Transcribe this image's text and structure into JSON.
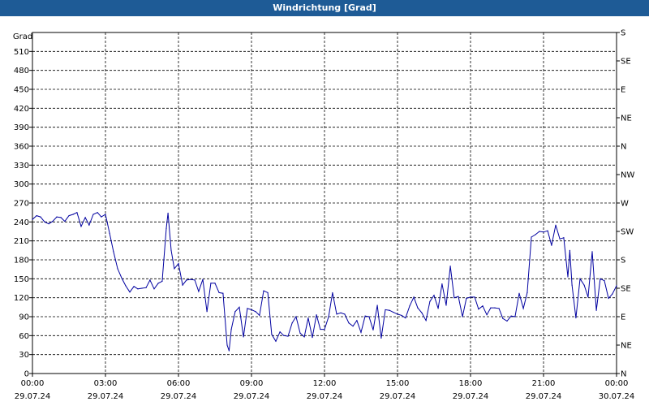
{
  "title": "Windrichtung [Grad]",
  "chart_data": {
    "type": "line",
    "title": "Windrichtung [Grad]",
    "ylabel": "Grad",
    "ylim": [
      0,
      540
    ],
    "y_ticks": [
      0,
      30,
      60,
      90,
      120,
      150,
      180,
      210,
      240,
      270,
      300,
      330,
      360,
      390,
      420,
      450,
      480,
      510
    ],
    "right_ticks": [
      {
        "value": 0,
        "label": "N"
      },
      {
        "value": 45,
        "label": "NE"
      },
      {
        "value": 90,
        "label": "E"
      },
      {
        "value": 135,
        "label": "SE"
      },
      {
        "value": 180,
        "label": "S"
      },
      {
        "value": 225,
        "label": "SW"
      },
      {
        "value": 270,
        "label": "W"
      },
      {
        "value": 315,
        "label": "NW"
      },
      {
        "value": 360,
        "label": "N"
      },
      {
        "value": 405,
        "label": "NE"
      },
      {
        "value": 450,
        "label": "E"
      },
      {
        "value": 495,
        "label": "SE"
      },
      {
        "value": 540,
        "label": "S"
      }
    ],
    "xlim": [
      0,
      24
    ],
    "x_ticks": [
      {
        "hour": 0,
        "time": "00:00",
        "date": "29.07.24"
      },
      {
        "hour": 3,
        "time": "03:00",
        "date": "29.07.24"
      },
      {
        "hour": 6,
        "time": "06:00",
        "date": "29.07.24"
      },
      {
        "hour": 9,
        "time": "09:00",
        "date": "29.07.24"
      },
      {
        "hour": 12,
        "time": "12:00",
        "date": "29.07.24"
      },
      {
        "hour": 15,
        "time": "15:00",
        "date": "29.07.24"
      },
      {
        "hour": 18,
        "time": "18:00",
        "date": "29.07.24"
      },
      {
        "hour": 21,
        "time": "21:00",
        "date": "29.07.24"
      },
      {
        "hour": 24,
        "time": "00:00",
        "date": "30.07.24"
      }
    ],
    "grid": true,
    "series": [
      {
        "color": "#0000a0",
        "points": [
          [
            0.0,
            244
          ],
          [
            0.17,
            250
          ],
          [
            0.33,
            248
          ],
          [
            0.5,
            240
          ],
          [
            0.67,
            237
          ],
          [
            0.83,
            241
          ],
          [
            1.0,
            248
          ],
          [
            1.17,
            247
          ],
          [
            1.33,
            241
          ],
          [
            1.5,
            250
          ],
          [
            1.67,
            252
          ],
          [
            1.83,
            255
          ],
          [
            2.0,
            233
          ],
          [
            2.17,
            247
          ],
          [
            2.33,
            235
          ],
          [
            2.5,
            252
          ],
          [
            2.67,
            255
          ],
          [
            2.83,
            248
          ],
          [
            3.0,
            252
          ],
          [
            3.17,
            222
          ],
          [
            3.33,
            193
          ],
          [
            3.5,
            166
          ],
          [
            3.67,
            151
          ],
          [
            3.83,
            139
          ],
          [
            4.0,
            129
          ],
          [
            4.17,
            138
          ],
          [
            4.33,
            134
          ],
          [
            4.5,
            135
          ],
          [
            4.67,
            136
          ],
          [
            4.83,
            148
          ],
          [
            5.0,
            134
          ],
          [
            5.17,
            143
          ],
          [
            5.33,
            146
          ],
          [
            5.5,
            230
          ],
          [
            5.57,
            254
          ],
          [
            5.7,
            195
          ],
          [
            5.83,
            166
          ],
          [
            6.0,
            174
          ],
          [
            6.17,
            140
          ],
          [
            6.33,
            148
          ],
          [
            6.5,
            149
          ],
          [
            6.67,
            148
          ],
          [
            6.83,
            130
          ],
          [
            7.0,
            149
          ],
          [
            7.17,
            98
          ],
          [
            7.33,
            143
          ],
          [
            7.5,
            143
          ],
          [
            7.67,
            128
          ],
          [
            7.83,
            127
          ],
          [
            8.0,
            45
          ],
          [
            8.08,
            36
          ],
          [
            8.17,
            70
          ],
          [
            8.33,
            98
          ],
          [
            8.5,
            105
          ],
          [
            8.67,
            58
          ],
          [
            8.83,
            103
          ],
          [
            9.0,
            101
          ],
          [
            9.17,
            98
          ],
          [
            9.33,
            92
          ],
          [
            9.5,
            131
          ],
          [
            9.67,
            128
          ],
          [
            9.83,
            62
          ],
          [
            10.0,
            51
          ],
          [
            10.17,
            66
          ],
          [
            10.33,
            60
          ],
          [
            10.5,
            59
          ],
          [
            10.67,
            80
          ],
          [
            10.83,
            90
          ],
          [
            11.0,
            64
          ],
          [
            11.17,
            58
          ],
          [
            11.33,
            88
          ],
          [
            11.5,
            57
          ],
          [
            11.67,
            93
          ],
          [
            11.83,
            70
          ],
          [
            12.0,
            70
          ],
          [
            12.17,
            90
          ],
          [
            12.33,
            128
          ],
          [
            12.5,
            94
          ],
          [
            12.67,
            96
          ],
          [
            12.83,
            94
          ],
          [
            13.0,
            80
          ],
          [
            13.17,
            75
          ],
          [
            13.33,
            84
          ],
          [
            13.5,
            65
          ],
          [
            13.67,
            91
          ],
          [
            13.83,
            90
          ],
          [
            14.0,
            69
          ],
          [
            14.17,
            108
          ],
          [
            14.33,
            56
          ],
          [
            14.5,
            101
          ],
          [
            14.67,
            100
          ],
          [
            14.83,
            97
          ],
          [
            15.0,
            94
          ],
          [
            15.17,
            92
          ],
          [
            15.33,
            88
          ],
          [
            15.5,
            107
          ],
          [
            15.67,
            121
          ],
          [
            15.83,
            104
          ],
          [
            16.0,
            96
          ],
          [
            16.17,
            84
          ],
          [
            16.33,
            114
          ],
          [
            16.5,
            124
          ],
          [
            16.67,
            103
          ],
          [
            16.83,
            142
          ],
          [
            17.0,
            108
          ],
          [
            17.17,
            170
          ],
          [
            17.33,
            120
          ],
          [
            17.5,
            122
          ],
          [
            17.67,
            90
          ],
          [
            17.83,
            119
          ],
          [
            18.0,
            121
          ],
          [
            18.17,
            121
          ],
          [
            18.33,
            102
          ],
          [
            18.5,
            107
          ],
          [
            18.67,
            93
          ],
          [
            18.83,
            104
          ],
          [
            19.0,
            104
          ],
          [
            19.17,
            103
          ],
          [
            19.33,
            87
          ],
          [
            19.5,
            83
          ],
          [
            19.67,
            91
          ],
          [
            19.83,
            90
          ],
          [
            20.0,
            127
          ],
          [
            20.17,
            103
          ],
          [
            20.33,
            128
          ],
          [
            20.5,
            216
          ],
          [
            20.67,
            220
          ],
          [
            20.83,
            225
          ],
          [
            21.0,
            224
          ],
          [
            21.17,
            226
          ],
          [
            21.33,
            203
          ],
          [
            21.5,
            235
          ],
          [
            21.67,
            213
          ],
          [
            21.83,
            215
          ],
          [
            22.0,
            153
          ],
          [
            22.08,
            195
          ],
          [
            22.17,
            140
          ],
          [
            22.33,
            88
          ],
          [
            22.5,
            150
          ],
          [
            22.67,
            140
          ],
          [
            22.83,
            121
          ],
          [
            23.0,
            193
          ],
          [
            23.17,
            100
          ],
          [
            23.33,
            150
          ],
          [
            23.5,
            147
          ],
          [
            23.67,
            119
          ],
          [
            23.83,
            126
          ],
          [
            24.0,
            139
          ]
        ]
      }
    ]
  }
}
